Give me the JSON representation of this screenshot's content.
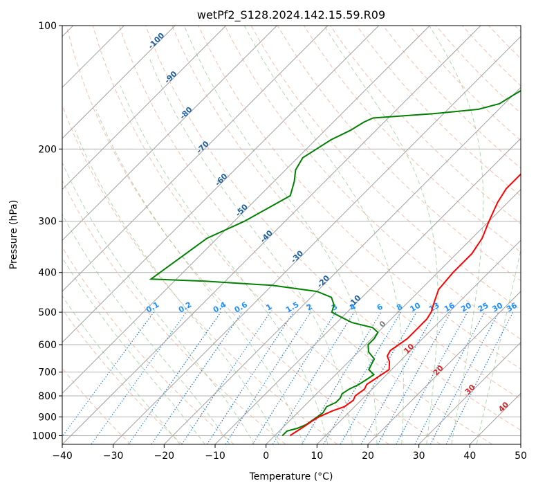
{
  "chart_data": {
    "type": "line",
    "title": "wetPf2_S128.2024.142.15.59.R09",
    "xlabel": "Temperature (°C)",
    "ylabel": "Pressure (hPa)",
    "xlim": [
      -40,
      50
    ],
    "ylim": [
      1050,
      100
    ],
    "y_scale": "log",
    "x_ticks": [
      "−40",
      "−30",
      "−20",
      "−10",
      "0",
      "10",
      "20",
      "30",
      "40",
      "50"
    ],
    "y_ticks": [
      "100",
      "200",
      "300",
      "400",
      "500",
      "600",
      "700",
      "800",
      "900",
      "1000"
    ],
    "grid": true,
    "colors": {
      "temperature": "#ff0000",
      "dewpoint": "#008000",
      "isotherm": "#a0a0a0",
      "dry_adiabat": "#f4a58a",
      "moist_adiabat": "#90c890",
      "mixing_ratio": "#1f77d4",
      "isotherm_label": "#1f5fa0",
      "mixing_label": "#1e90ff",
      "adiabat_label": "#d62728",
      "zero_label": "#808080"
    },
    "isotherm_labels": [
      {
        "text": "-100",
        "t": -100,
        "p": 110
      },
      {
        "text": "-90",
        "t": -90,
        "p": 135
      },
      {
        "text": "-80",
        "t": -80,
        "p": 165
      },
      {
        "text": "-70",
        "t": -70,
        "p": 200
      },
      {
        "text": "-60",
        "t": -60,
        "p": 240
      },
      {
        "text": "-50",
        "t": -50,
        "p": 285
      },
      {
        "text": "-40",
        "t": -40,
        "p": 330
      },
      {
        "text": "-30",
        "t": -30,
        "p": 370
      },
      {
        "text": "-20",
        "t": -20,
        "p": 425
      },
      {
        "text": "-10",
        "t": -10,
        "p": 475
      },
      {
        "text": "0",
        "t": 0,
        "p": 540
      }
    ],
    "mixing_ratio_labels": [
      "0.1",
      "0.2",
      "0.4",
      "0.6",
      "1",
      "1.5",
      "2",
      "3",
      "4",
      "6",
      "8",
      "10",
      "13",
      "16",
      "20",
      "25",
      "30",
      "36"
    ],
    "mixing_ratio_values": [
      0.1,
      0.2,
      0.4,
      0.6,
      1,
      1.5,
      2,
      3,
      4,
      6,
      8,
      10,
      13,
      16,
      20,
      25,
      30,
      36
    ],
    "mixing_ratio_label_p": 500,
    "dry_adiabat_labels": [
      {
        "text": "10",
        "t": 10,
        "p": 620
      },
      {
        "text": "20",
        "t": 20,
        "p": 700
      },
      {
        "text": "30",
        "t": 30,
        "p": 780
      },
      {
        "text": "40",
        "t": 40,
        "p": 860
      }
    ],
    "series": [
      {
        "name": "temperature",
        "values": [
          [
            3.0,
            1000
          ],
          [
            3.5,
            975
          ],
          [
            4.0,
            950
          ],
          [
            4.5,
            920
          ],
          [
            5.0,
            900
          ],
          [
            6.5,
            870
          ],
          [
            8.0,
            850
          ],
          [
            8.5,
            820
          ],
          [
            8.0,
            800
          ],
          [
            8.5,
            770
          ],
          [
            8.0,
            750
          ],
          [
            8.5,
            730
          ],
          [
            9.0,
            710
          ],
          [
            9.5,
            690
          ],
          [
            8.0,
            660
          ],
          [
            6.5,
            640
          ],
          [
            6.0,
            620
          ],
          [
            6.5,
            600
          ],
          [
            7.0,
            580
          ],
          [
            7.0,
            560
          ],
          [
            7.0,
            540
          ],
          [
            7.0,
            520
          ],
          [
            6.5,
            500
          ],
          [
            5.0,
            470
          ],
          [
            3.5,
            440
          ],
          [
            3.0,
            400
          ],
          [
            3.0,
            360
          ],
          [
            2.0,
            330
          ],
          [
            0.0,
            300
          ],
          [
            -2.0,
            270
          ],
          [
            -3.0,
            250
          ],
          [
            -3.0,
            230
          ],
          [
            -2.0,
            215
          ],
          [
            0.0,
            205
          ],
          [
            3.0,
            195
          ],
          [
            6.0,
            185
          ],
          [
            8.5,
            170
          ],
          [
            9.0,
            160
          ],
          [
            9.0,
            150
          ],
          [
            8.0,
            140
          ],
          [
            8.5,
            130
          ],
          [
            9.0,
            120
          ],
          [
            11.0,
            110
          ],
          [
            14.0,
            100
          ]
        ]
      },
      {
        "name": "dewpoint",
        "values": [
          [
            1.5,
            1000
          ],
          [
            1.5,
            975
          ],
          [
            3.0,
            960
          ],
          [
            4.0,
            940
          ],
          [
            4.5,
            910
          ],
          [
            5.0,
            880
          ],
          [
            4.5,
            850
          ],
          [
            5.5,
            830
          ],
          [
            5.5,
            810
          ],
          [
            5.0,
            790
          ],
          [
            5.5,
            770
          ],
          [
            6.5,
            750
          ],
          [
            7.0,
            730
          ],
          [
            7.5,
            710
          ],
          [
            5.5,
            690
          ],
          [
            5.0,
            670
          ],
          [
            4.5,
            650
          ],
          [
            2.0,
            625
          ],
          [
            0.5,
            600
          ],
          [
            0.5,
            580
          ],
          [
            0.0,
            560
          ],
          [
            -2.0,
            545
          ],
          [
            -7.0,
            530
          ],
          [
            -10.0,
            515
          ],
          [
            -13.0,
            500
          ],
          [
            -14.0,
            480
          ],
          [
            -16.0,
            460
          ],
          [
            -20.0,
            445
          ],
          [
            -30.0,
            430
          ],
          [
            -44.0,
            420
          ],
          [
            -55.0,
            415
          ],
          [
            -52.0,
            330
          ],
          [
            -48.0,
            300
          ],
          [
            -44.0,
            260
          ],
          [
            -46.0,
            240
          ],
          [
            -48.0,
            225
          ],
          [
            -49.0,
            210
          ],
          [
            -48.0,
            200
          ],
          [
            -47.0,
            190
          ],
          [
            -45.0,
            180
          ],
          [
            -44.0,
            172
          ],
          [
            -43.0,
            168
          ],
          [
            -32.0,
            164
          ],
          [
            -24.0,
            160
          ],
          [
            -21.0,
            155
          ],
          [
            -20.0,
            148
          ],
          [
            -19.0,
            142
          ],
          [
            -18.0,
            135
          ],
          [
            -14.0,
            125
          ],
          [
            -8.0,
            112
          ],
          [
            -2.0,
            100
          ]
        ]
      }
    ]
  }
}
